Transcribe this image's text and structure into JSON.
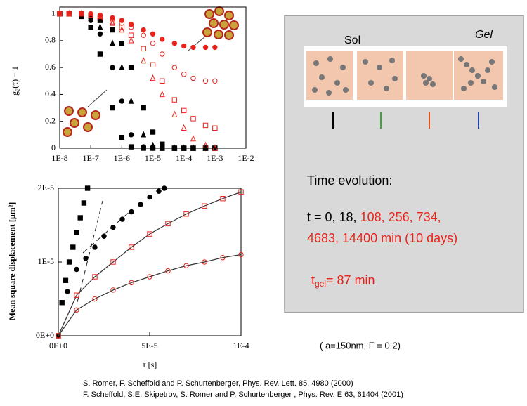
{
  "chart_data": [
    {
      "type": "scatter",
      "y_label": "g₂(τ) − 1",
      "log_x": true,
      "x": [
        1e-08,
        2e-08,
        5e-08,
        1e-07,
        2e-07,
        5e-07,
        1e-06,
        2e-06,
        5e-06,
        1e-05,
        2e-05,
        5e-05,
        0.0001,
        0.0002,
        0.0005,
        0.001
      ],
      "xlim": [
        1e-08,
        0.01
      ],
      "xticks": [
        {
          "value": 1e-08,
          "label": "1E-8"
        },
        {
          "value": 1e-07,
          "label": "1E-7"
        },
        {
          "value": 1e-06,
          "label": "1E-6"
        },
        {
          "value": 1e-05,
          "label": "1E-5"
        },
        {
          "value": 0.0001,
          "label": "1E-4"
        },
        {
          "value": 0.001,
          "label": "1E-3"
        },
        {
          "value": 0.01,
          "label": "1E-2"
        }
      ],
      "ylim": [
        0,
        1.05
      ],
      "yticks": [
        0,
        0.2,
        0.4,
        0.6,
        0.8,
        1
      ],
      "series": [
        {
          "color": "#000000",
          "marker": "square",
          "filled": true,
          "values": [
            1,
            1,
            0.98,
            0.9,
            0.7,
            0.3,
            0.08,
            0.01,
            0,
            0,
            0,
            0,
            0,
            0,
            0,
            0
          ]
        },
        {
          "color": "#000000",
          "marker": "circle",
          "filled": true,
          "values": [
            1,
            1,
            0.99,
            0.95,
            0.85,
            0.6,
            0.35,
            0.1,
            0.01,
            0,
            0,
            0,
            0,
            0,
            0,
            0
          ]
        },
        {
          "color": "#000000",
          "marker": "triangle",
          "filled": true,
          "values": [
            1,
            1,
            1,
            0.97,
            0.9,
            0.78,
            0.6,
            0.35,
            0.1,
            0.02,
            0,
            0,
            0,
            0,
            0,
            0
          ]
        },
        {
          "color": "#000000",
          "marker": "square",
          "filled": true,
          "values": [
            1,
            1,
            1,
            0.98,
            0.95,
            0.88,
            0.78,
            0.6,
            0.3,
            0.12,
            0.03,
            0,
            0,
            0,
            0,
            0
          ]
        },
        {
          "color": "#e8231c",
          "marker": "triangle",
          "filled": false,
          "values": [
            1,
            1,
            1,
            0.99,
            0.97,
            0.93,
            0.88,
            0.8,
            0.65,
            0.52,
            0.4,
            0.25,
            0.15,
            0.07,
            0.02,
            0
          ]
        },
        {
          "color": "#e8231c",
          "marker": "square",
          "filled": false,
          "values": [
            1,
            1,
            1,
            0.99,
            0.97,
            0.94,
            0.9,
            0.84,
            0.74,
            0.62,
            0.5,
            0.36,
            0.28,
            0.22,
            0.17,
            0.15
          ]
        },
        {
          "color": "#e8231c",
          "marker": "circle",
          "filled": false,
          "values": [
            1,
            1,
            1,
            0.99,
            0.98,
            0.96,
            0.93,
            0.9,
            0.84,
            0.78,
            0.7,
            0.6,
            0.55,
            0.52,
            0.5,
            0.5
          ]
        },
        {
          "color": "#e8231c",
          "marker": "circle",
          "filled": true,
          "values": [
            1,
            1,
            1,
            1,
            0.99,
            0.97,
            0.95,
            0.92,
            0.88,
            0.85,
            0.81,
            0.78,
            0.76,
            0.75,
            0.75,
            0.75
          ]
        }
      ]
    },
    {
      "type": "scatter",
      "x_label": "τ [s]",
      "y_label": "Mean square displacement [μm²]",
      "xlim": [
        0,
        0.0001
      ],
      "xticks": [
        {
          "value": 0,
          "label": "0E+0"
        },
        {
          "value": 5e-05,
          "label": "5E-5"
        },
        {
          "value": 0.0001,
          "label": "1E-4"
        }
      ],
      "ylim": [
        0,
        2e-05
      ],
      "yticks": [
        {
          "value": 0,
          "label": "0E+0"
        },
        {
          "value": 1e-05,
          "label": "1E-5"
        },
        {
          "value": 2e-05,
          "label": "2E-5"
        }
      ],
      "series": [
        {
          "color": "#000000",
          "marker": "square",
          "filled": true,
          "line": false,
          "x": [
            0,
            2e-06,
            4e-06,
            6e-06,
            8e-06,
            1e-05,
            1.2e-05,
            1.4e-05,
            1.6e-05
          ],
          "values": [
            0,
            4.5e-06,
            7.5e-06,
            1e-05,
            1.2e-05,
            1.4e-05,
            1.6e-05,
            1.8e-05,
            2e-05
          ]
        },
        {
          "color": "#000000",
          "marker": "circle",
          "filled": true,
          "line": false,
          "x": [
            0,
            5e-06,
            1e-05,
            1.5e-05,
            2e-05,
            2.5e-05,
            3e-05,
            3.5e-05,
            4e-05,
            4.5e-05,
            5e-05,
            5.5e-05,
            5.8e-05
          ],
          "values": [
            0,
            6e-06,
            9e-06,
            1.05e-05,
            1.2e-05,
            1.35e-05,
            1.47e-05,
            1.58e-05,
            1.68e-05,
            1.78e-05,
            1.88e-05,
            1.96e-05,
            2e-05
          ]
        },
        {
          "color": "#e8231c",
          "marker": "square",
          "filled": false,
          "line": true,
          "x": [
            0,
            1e-05,
            2e-05,
            3e-05,
            4e-05,
            5e-05,
            6e-05,
            7e-05,
            8e-05,
            9e-05,
            0.0001
          ],
          "values": [
            0,
            5.5e-06,
            8e-06,
            1e-05,
            1.2e-05,
            1.38e-05,
            1.52e-05,
            1.65e-05,
            1.76e-05,
            1.86e-05,
            1.95e-05
          ]
        },
        {
          "color": "#e8231c",
          "marker": "circle",
          "filled": false,
          "line": true,
          "x": [
            0,
            1e-05,
            2e-05,
            3e-05,
            4e-05,
            5e-05,
            6e-05,
            7e-05,
            8e-05,
            9e-05,
            0.0001
          ],
          "values": [
            0,
            3.5e-06,
            5e-06,
            6.2e-06,
            7.2e-06,
            8e-06,
            8.8e-06,
            9.5e-06,
            1e-05,
            1.06e-05,
            1.1e-05
          ]
        }
      ]
    }
  ],
  "panel": {
    "sol": "Sol",
    "gel": "Gel",
    "heading": "Time evolution:",
    "times_black": "t = 0, 18, ",
    "times_red_1": "108, 256, 734,",
    "times_red_2": "4683, 14400 min  (10 days)",
    "tgel_t": "t",
    "tgel_sub": "gel",
    "tgel_rest": "= 87 min"
  },
  "params": "( a=150nm, F = 0.2)",
  "references": [
    "S. Romer, F. Scheffold and P. Schurtenberger, Phys. Rev. Lett. 85, 4980 (2000)",
    "F. Scheffold, S.E. Skipetrov, S. Romer and P. Schurtenberger , Phys. Rev. E  63, 61404 (2001)"
  ]
}
